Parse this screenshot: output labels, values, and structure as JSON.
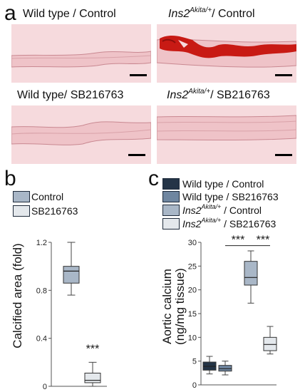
{
  "panel_a": {
    "letter": "a",
    "tiles": [
      {
        "prefix": "Wild type / Control",
        "gene": "",
        "sup": "",
        "suffix": ""
      },
      {
        "prefix": "",
        "gene": "Ins2",
        "sup": "Akita/+",
        "suffix": "/ Control"
      },
      {
        "prefix": "Wild type/ SB216763",
        "gene": "",
        "sup": "",
        "suffix": ""
      },
      {
        "prefix": "",
        "gene": "Ins2",
        "sup": "Akita/+",
        "suffix": "/ SB216763"
      }
    ],
    "colors": {
      "tissue": "#f6dadd",
      "stain": "#c81a14"
    }
  },
  "panel_b": {
    "letter": "b",
    "legend": [
      {
        "label": "Control",
        "color": "#a9b7c7"
      },
      {
        "label": "SB216763",
        "color": "#e4e8ec"
      }
    ],
    "ylabel": "Calcified area (fold)",
    "significance": "***"
  },
  "panel_c": {
    "letter": "c",
    "legend": [
      {
        "prefix": "Wild type / Control",
        "gene": "",
        "sup": "",
        "suffix": "",
        "color": "#243447"
      },
      {
        "prefix": "Wild type / SB216763",
        "gene": "",
        "sup": "",
        "suffix": "",
        "color": "#6f86a0"
      },
      {
        "prefix": "",
        "gene": "Ins2",
        "sup": "Akita/+",
        "suffix": " / Control",
        "color": "#a9b7c7"
      },
      {
        "prefix": "",
        "gene": "Ins2",
        "sup": "Akita/+",
        "suffix": " / SB216763",
        "color": "#e4e8ec"
      }
    ],
    "ylabel_line1": "Aortic calcium",
    "ylabel_line2": "(ng/mg tissue)",
    "significance": [
      "***",
      "***"
    ]
  },
  "chart_data": [
    {
      "type": "box",
      "panel": "b",
      "ylabel": "Calcified area (fold)",
      "ylim": [
        0,
        1.2
      ],
      "yticks": [
        "0",
        "0.4",
        "0.8",
        "1.2"
      ],
      "series": [
        {
          "name": "Control",
          "color": "#a9b7c7",
          "min": 0.76,
          "q1": 0.86,
          "median": 0.96,
          "q3": 1.0,
          "max": 1.2
        },
        {
          "name": "SB216763",
          "color": "#e4e8ec",
          "min": 0.0,
          "q1": 0.03,
          "median": 0.05,
          "q3": 0.11,
          "max": 0.2
        }
      ],
      "annotations": [
        {
          "text": "***",
          "series": "SB216763"
        }
      ]
    },
    {
      "type": "box",
      "panel": "c",
      "ylabel": "Aortic calcium (ng/mg tissue)",
      "ylim": [
        0,
        30
      ],
      "yticks": [
        "0",
        "5",
        "10",
        "15",
        "20",
        "25",
        "30"
      ],
      "series": [
        {
          "name": "Wild type / Control",
          "color": "#243447",
          "min": 2.3,
          "q1": 3.1,
          "median": 3.9,
          "q3": 4.8,
          "max": 6.0
        },
        {
          "name": "Wild type / SB216763",
          "color": "#6f86a0",
          "min": 2.1,
          "q1": 2.9,
          "median": 3.4,
          "q3": 4.1,
          "max": 5.0
        },
        {
          "name": "Ins2Akita/+ / Control",
          "color": "#a9b7c7",
          "min": 17.2,
          "q1": 21.0,
          "median": 22.6,
          "q3": 26.0,
          "max": 28.2
        },
        {
          "name": "Ins2Akita/+ / SB216763",
          "color": "#e4e8ec",
          "min": 6.5,
          "q1": 7.2,
          "median": 8.5,
          "q3": 10.0,
          "max": 12.3
        }
      ],
      "annotations": [
        {
          "text": "***",
          "between": [
            "Wild type / SB216763",
            "Ins2Akita/+ / Control"
          ]
        },
        {
          "text": "***",
          "between": [
            "Ins2Akita/+ / Control",
            "Ins2Akita/+ / SB216763"
          ]
        }
      ]
    }
  ]
}
